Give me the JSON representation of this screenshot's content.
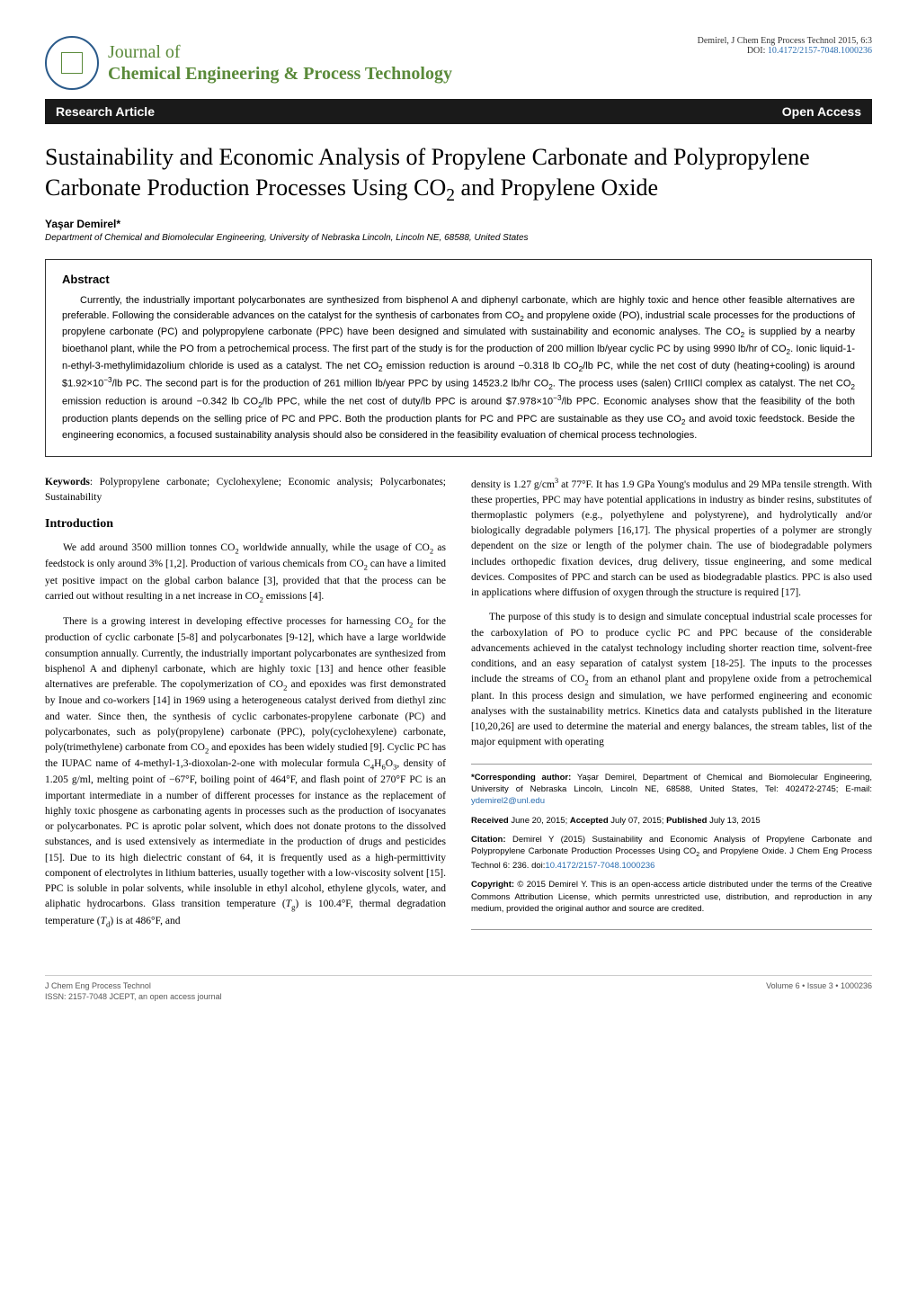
{
  "header": {
    "journal_name_line1": "Journal of",
    "journal_name_line2": "Chemical Engineering & Process Technology",
    "citation": "Demirel, J Chem Eng Process Technol 2015, 6:3",
    "doi_label": "DOI:",
    "doi": "10.4172/2157-7048.1000236",
    "logo_issn": "ISSN: 2157-7048"
  },
  "banner": {
    "left": "Research Article",
    "right": "Open Access"
  },
  "article": {
    "title_html": "Sustainability and Economic Analysis of Propylene Carbonate and Polypropylene Carbonate Production Processes Using CO<sub>2</sub> and Propylene Oxide",
    "author": "Yaşar Demirel*",
    "affiliation": "Department of Chemical and Biomolecular Engineering, University of Nebraska Lincoln, Lincoln NE, 68588, United States"
  },
  "abstract": {
    "heading": "Abstract",
    "text_html": "Currently, the industrially important polycarbonates are synthesized from bisphenol A and diphenyl carbonate, which are highly toxic and hence other feasible alternatives are preferable. Following the considerable advances on the catalyst for the synthesis of carbonates from CO<sub>2</sub> and propylene oxide (PO), industrial scale processes for the productions of propylene carbonate (PC) and polypropylene carbonate (PPC) have been designed and simulated with sustainability and economic analyses. The CO<sub>2</sub> is supplied by a nearby bioethanol plant, while the PO from a petrochemical process. The first part of the study is for the production of 200 million lb/year cyclic PC by using 9990 lb/hr of CO<sub>2</sub>. Ionic liquid-1-n-ethyl-3-methylimidazolium chloride is used as a catalyst. The net CO<sub>2</sub> emission reduction is around −0.318 lb CO<sub>2</sub>/lb PC, while the net cost of duty (heating+cooling) is around $1.92×10<sup>−3</sup>/lb PC. The second part is for the production of 261 million lb/year PPC by using 14523.2 lb/hr CO<sub>2</sub>. The process uses (salen) CrIIICl complex as catalyst. The net CO<sub>2</sub> emission reduction is around −0.342 lb CO<sub>2</sub>/lb PPC, while the net cost of duty/lb PPC is around $7.978×10<sup>−3</sup>/lb PPC. Economic analyses show that the feasibility of the both production plants depends on the selling price of PC and PPC. Both the production plants for PC and PPC are sustainable as they use CO<sub>2</sub> and avoid toxic feedstock. Beside the engineering economics, a focused sustainability analysis should also be considered in the feasibility evaluation of chemical process technologies."
  },
  "keywords": {
    "label": "Keywords",
    "text": ": Polypropylene carbonate; Cyclohexylene; Economic analysis; Polycarbonates; Sustainability"
  },
  "intro": {
    "heading": "Introduction",
    "p1_html": "We add around 3500 million tonnes CO<sub>2</sub> worldwide annually, while the usage of CO<sub>2</sub> as feedstock is only around 3% [1,2]. Production of various chemicals from CO<sub>2</sub> can have a limited yet positive impact on the global carbon balance [3], provided that that the process can be carried out without resulting in a net increase in CO<sub>2</sub> emissions [4].",
    "p2_html": "There is a growing interest in developing effective processes for harnessing CO<sub>2</sub> for the production of cyclic carbonate [5-8] and polycarbonates [9-12], which have a large worldwide consumption annually. Currently, the industrially important polycarbonates are synthesized from bisphenol A and diphenyl carbonate, which are highly toxic [13] and hence other feasible alternatives are preferable. The copolymerization of CO<sub>2</sub> and epoxides was first demonstrated by Inoue and co-workers [14] in 1969 using a heterogeneous catalyst derived from diethyl zinc and water. Since then, the synthesis of cyclic carbonates-propylene carbonate (PC) and polycarbonates, such as poly(propylene) carbonate (PPC), poly(cyclohexylene) carbonate, poly(trimethylene) carbonate from CO<sub>2</sub> and epoxides has been widely studied [9]. Cyclic PC has the IUPAC name of 4-methyl-1,3-dioxolan-2-one with molecular formula C<sub>4</sub>H<sub>6</sub>O<sub>3</sub>, density of 1.205 g/ml, melting point of −67°F, boiling point of 464°F, and flash point of 270°F PC is an important intermediate in a number of different processes for instance as the replacement of highly toxic phosgene as carbonating agents in processes such as the production of isocyanates or polycarbonates. PC is aprotic polar solvent, which does not donate protons to the dissolved substances, and is used extensively as intermediate in the production of drugs and pesticides [15]. Due to its high dielectric constant of 64, it is frequently used as a high-permittivity component of electrolytes in lithium batteries, usually together with a low-viscosity solvent [15]. PPC is soluble in polar solvents, while insoluble in ethyl alcohol, ethylene glycols, water, and aliphatic hydrocarbons. Glass transition temperature (<span class=\"ital\">T</span><sub>g</sub>) is 100.4°F, thermal degradation temperature (<span class=\"ital\">T</span><sub>d</sub>) is at 486°F, and",
    "p3_html": "density is 1.27 g/cm<sup>3</sup> at 77°F. It has 1.9 GPa Young's modulus and 29 MPa tensile strength. With these properties, PPC may have potential applications in industry as binder resins, substitutes of thermoplastic polymers (e.g., polyethylene and polystyrene), and hydrolytically and/or biologically degradable polymers [16,17]. The physical properties of a polymer are strongly dependent on the size or length of the polymer chain. The use of biodegradable polymers includes orthopedic fixation devices, drug delivery, tissue engineering, and some medical devices. Composites of PPC and starch can be used as biodegradable plastics. PPC is also used in applications where diffusion of oxygen through the structure is required [17].",
    "p4_html": "The purpose of this study is to design and simulate conceptual industrial scale processes for the carboxylation of PO to produce cyclic PC and PPC because of the considerable advancements achieved in the catalyst technology including shorter reaction time, solvent-free conditions, and an easy separation of catalyst system [18-25]. The inputs to the processes include the streams of CO<sub>2</sub> from an ethanol plant and propylene oxide from a petrochemical plant. In this process design and simulation, we have performed engineering and economic analyses with the sustainability metrics. Kinetics data and catalysts published in the literature [10,20,26] are used to determine the material and energy balances, the stream tables, list of the major equipment with operating"
  },
  "infobox": {
    "corresponding_label": "*Corresponding author:",
    "corresponding_text": " Yaşar Demirel, Department of Chemical and Biomolecular Engineering, University of Nebraska Lincoln, Lincoln NE, 68588, United States, Tel: 402472-2745; E-mail: ",
    "email": "ydemirel2@unl.edu",
    "received_label": "Received",
    "received_date": " June 20, 2015; ",
    "accepted_label": "Accepted",
    "accepted_date": " July 07, 2015; ",
    "published_label": "Published",
    "published_date": " July 13, 2015",
    "citation_label": "Citation:",
    "citation_text_html": " Demirel Y (2015) Sustainability and Economic Analysis of Propylene Carbonate and Polypropylene Carbonate Production Processes Using CO<sub>2</sub> and Propylene Oxide. J Chem Eng Process Technol 6: 236. doi:",
    "citation_doi": "10.4172/2157-7048.1000236",
    "copyright_label": "Copyright:",
    "copyright_text": " © 2015 Demirel Y. This is an open-access article distributed under the terms of the Creative Commons Attribution License, which permits unrestricted use, distribution, and reproduction in any medium, provided the original author and source are credited."
  },
  "footer": {
    "left_line1": "J Chem Eng Process Technol",
    "left_line2": "ISSN: 2157-7048 JCEPT, an open access journal",
    "right": "Volume 6 • Issue 3 • 1000236"
  },
  "colors": {
    "green": "#5a8a3a",
    "blue": "#2a6db0",
    "dark_blue": "#2a5a8a",
    "banner_bg": "#1a1a1a"
  }
}
